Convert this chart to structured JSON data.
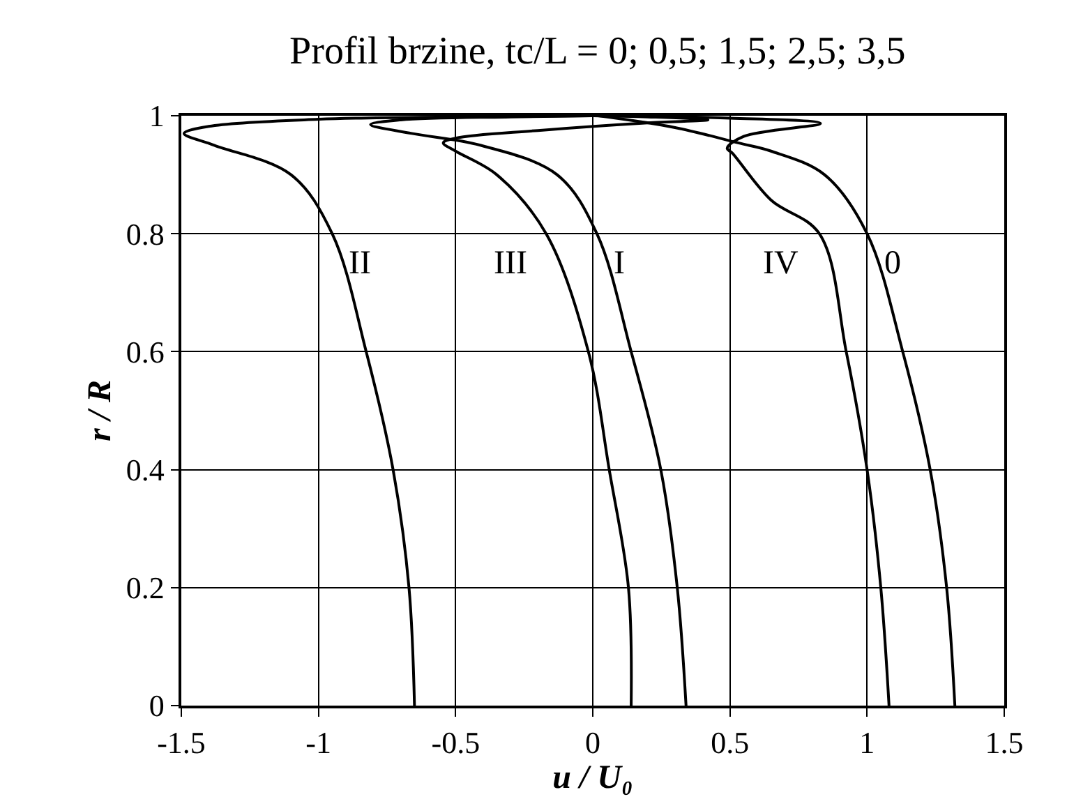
{
  "chart_data": {
    "type": "line",
    "title": "Profil brzine, tc/L = 0; 0,5; 1,5; 2,5; 3,5",
    "xlabel": "u / U₀",
    "ylabel": "r / R",
    "xlim": [
      -1.5,
      1.5
    ],
    "xticks": [
      -1.5,
      -1,
      -0.5,
      0,
      0.5,
      1,
      1.5
    ],
    "ylim": [
      0,
      1
    ],
    "yticks": [
      0,
      0.2,
      0.4,
      0.6,
      0.8,
      1
    ],
    "grid": true,
    "legend": false,
    "marker": "none",
    "line_style": "solid",
    "series": [
      {
        "name": "0",
        "color": "#000000",
        "x": [
          1.32,
          1.29,
          1.23,
          1.13,
          1.0,
          0.845,
          0.65,
          0.53,
          0.3,
          0.02
        ],
        "values": [
          0,
          0.2,
          0.4,
          0.6,
          0.8,
          0.9,
          0.94,
          0.954,
          0.98,
          1.0
        ]
      },
      {
        "name": "I",
        "color": "#000000",
        "x": [
          0.34,
          0.308,
          0.248,
          0.14,
          0.015,
          -0.13,
          -0.41,
          -0.66,
          -0.81,
          -0.7,
          -0.3,
          0.0
        ],
        "values": [
          0,
          0.2,
          0.4,
          0.6,
          0.8,
          0.9,
          0.95,
          0.97,
          0.985,
          0.993,
          0.998,
          1.0
        ]
      },
      {
        "name": "II",
        "color": "#000000",
        "x": [
          -0.65,
          -0.67,
          -0.728,
          -0.826,
          -0.95,
          -1.1,
          -1.38,
          -1.49,
          -1.4,
          -1.0,
          -0.5,
          0.0
        ],
        "values": [
          0,
          0.2,
          0.4,
          0.6,
          0.8,
          0.9,
          0.95,
          0.97,
          0.982,
          0.994,
          0.998,
          1.0
        ]
      },
      {
        "name": "III",
        "color": "#000000",
        "x": [
          0.14,
          0.13,
          0.06,
          -0.016,
          -0.17,
          -0.35,
          -0.5,
          -0.545,
          -0.5,
          -0.2,
          0.2,
          0.42,
          0.2,
          0.0
        ],
        "values": [
          0,
          0.2,
          0.4,
          0.6,
          0.8,
          0.9,
          0.94,
          0.954,
          0.962,
          0.975,
          0.988,
          0.993,
          0.998,
          1.0
        ]
      },
      {
        "name": "IV",
        "color": "#000000",
        "x": [
          1.08,
          1.05,
          1.0,
          0.924,
          0.826,
          0.65,
          0.51,
          0.49,
          0.55,
          0.83,
          0.5,
          0.0
        ],
        "values": [
          0,
          0.2,
          0.4,
          0.6,
          0.8,
          0.857,
          0.936,
          0.945,
          0.965,
          0.987,
          0.996,
          1.0
        ]
      }
    ]
  }
}
